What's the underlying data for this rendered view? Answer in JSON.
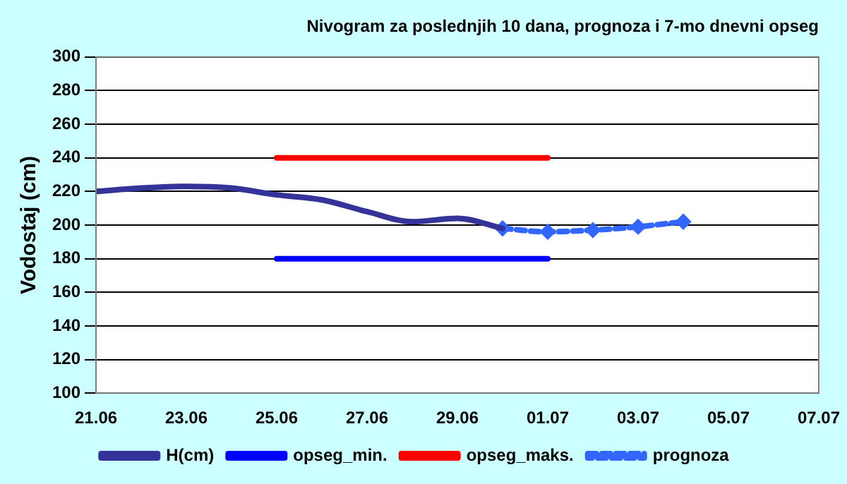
{
  "chart_data": {
    "type": "line",
    "title": "Nivogram za poslednjih 10 dana, prognoza i 7-mo dnevni opseg",
    "ylabel": "Vodostaj (cm)",
    "series": [
      {
        "name": "H(cm)",
        "color": "#333399",
        "x": [
          "--06-21",
          "--06-22",
          "--06-23",
          "--06-24",
          "--06-25",
          "--06-26",
          "--06-27",
          "--06-28",
          "--06-29",
          "--06-30"
        ],
        "values": [
          220,
          222,
          223,
          222,
          218,
          215,
          208,
          202,
          204,
          198
        ],
        "line_style": "solid",
        "marker": "none"
      },
      {
        "name": "opseg_min.",
        "color": "#0000ff",
        "x": [
          "--06-25",
          "--07-01"
        ],
        "values": [
          180,
          180
        ],
        "line_style": "solid",
        "marker": "none"
      },
      {
        "name": "opseg_maks.",
        "color": "#ff0000",
        "x": [
          "--06-25",
          "--07-01"
        ],
        "values": [
          240,
          240
        ],
        "line_style": "solid",
        "marker": "none"
      },
      {
        "name": "prognoza",
        "color": "#3366ff",
        "x": [
          "--06-30",
          "--07-01",
          "--07-02",
          "--07-03",
          "--07-04"
        ],
        "values": [
          198,
          196,
          197,
          199,
          202
        ],
        "line_style": "dashed",
        "marker": "diamond"
      }
    ],
    "xlim": [
      "--06-21",
      "--07-07"
    ],
    "xticks": [
      {
        "value": "--06-21",
        "label": "21.06"
      },
      {
        "value": "--06-23",
        "label": "23.06"
      },
      {
        "value": "--06-25",
        "label": "25.06"
      },
      {
        "value": "--06-27",
        "label": "27.06"
      },
      {
        "value": "--06-29",
        "label": "29.06"
      },
      {
        "value": "--07-01",
        "label": "01.07"
      },
      {
        "value": "--07-03",
        "label": "03.07"
      },
      {
        "value": "--07-05",
        "label": "05.07"
      },
      {
        "value": "--07-07",
        "label": "07.07"
      }
    ],
    "ylim": [
      100,
      300
    ],
    "yticks": [
      100,
      120,
      140,
      160,
      180,
      200,
      220,
      240,
      260,
      280,
      300
    ],
    "grid": "y",
    "legend": "bottom"
  }
}
